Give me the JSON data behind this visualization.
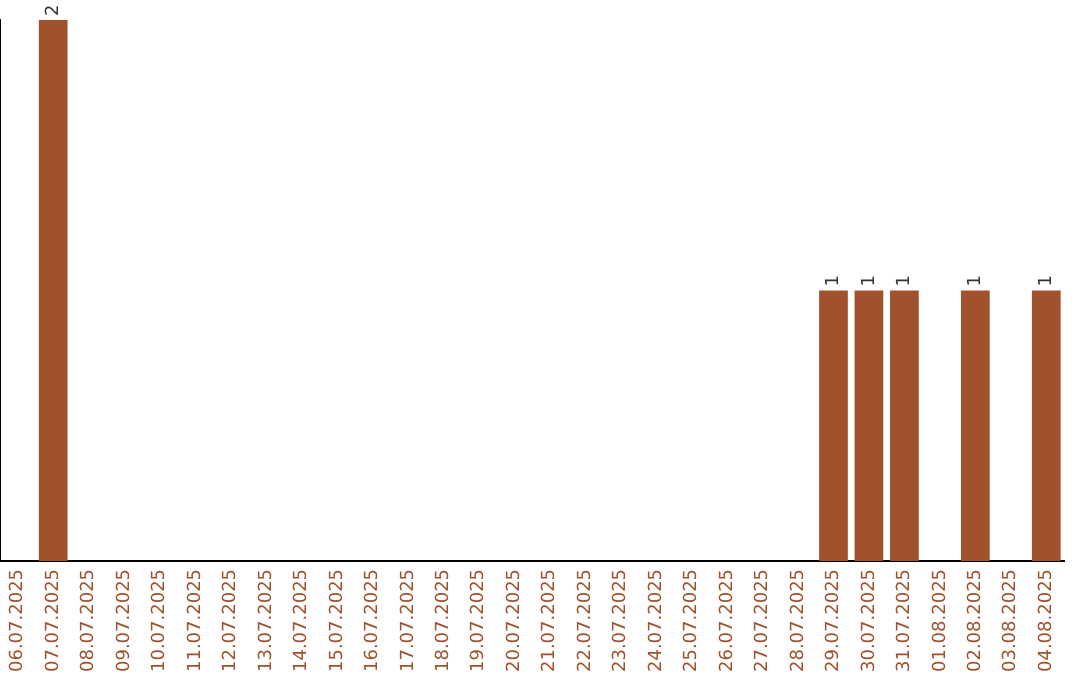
{
  "chart_data": {
    "type": "bar",
    "categories": [
      "06.07.2025",
      "07.07.2025",
      "08.07.2025",
      "09.07.2025",
      "10.07.2025",
      "11.07.2025",
      "12.07.2025",
      "13.07.2025",
      "14.07.2025",
      "15.07.2025",
      "16.07.2025",
      "17.07.2025",
      "18.07.2025",
      "19.07.2025",
      "20.07.2025",
      "21.07.2025",
      "22.07.2025",
      "23.07.2025",
      "24.07.2025",
      "25.07.2025",
      "26.07.2025",
      "27.07.2025",
      "28.07.2025",
      "29.07.2025",
      "30.07.2025",
      "31.07.2025",
      "01.08.2025",
      "02.08.2025",
      "03.08.2025",
      "04.08.2025"
    ],
    "values": [
      0,
      2,
      0,
      0,
      0,
      0,
      0,
      0,
      0,
      0,
      0,
      0,
      0,
      0,
      0,
      0,
      0,
      0,
      0,
      0,
      0,
      0,
      0,
      1,
      1,
      1,
      0,
      1,
      0,
      1
    ],
    "value_labels": [
      null,
      "2",
      null,
      null,
      null,
      null,
      null,
      null,
      null,
      null,
      null,
      null,
      null,
      null,
      null,
      null,
      null,
      null,
      null,
      null,
      null,
      null,
      null,
      "1",
      "1",
      "1",
      null,
      "1",
      null,
      "1"
    ],
    "color": "#a0522d",
    "ylim": [
      0,
      2
    ],
    "tick_labels": "x",
    "grid": false,
    "legend": false
  }
}
